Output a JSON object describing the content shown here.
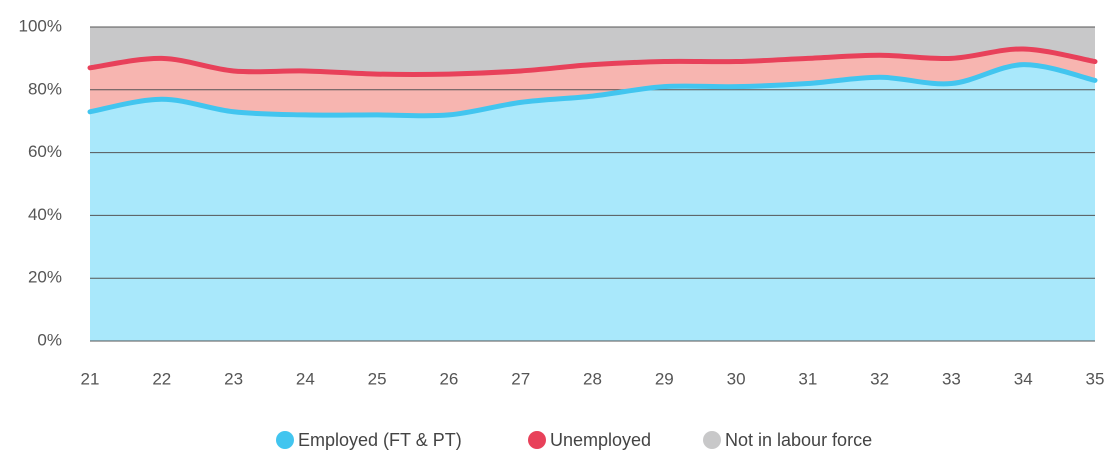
{
  "chart_data": {
    "type": "stacked_area",
    "x": [
      21,
      22,
      23,
      24,
      25,
      26,
      27,
      28,
      29,
      30,
      31,
      32,
      33,
      34,
      35
    ],
    "xlim": [
      21,
      35
    ],
    "series": [
      {
        "name": "Employed (FT & PT)",
        "color": "#42c5ef",
        "fill": "#a9e8fb",
        "values": [
          73,
          77,
          73,
          72,
          72,
          72,
          76,
          78,
          81,
          81,
          82,
          84,
          82,
          88,
          83
        ]
      },
      {
        "name": "Unemployed",
        "color": "#e8415a",
        "fill": "#f7b5b0",
        "values": [
          14,
          13,
          13,
          14,
          13,
          13,
          10,
          10,
          8,
          8,
          8,
          7,
          8,
          5,
          6
        ]
      },
      {
        "name": "Not in labour force",
        "color": "#c8c8c9",
        "fill": "#c8c8c9",
        "values": [
          13,
          10,
          14,
          14,
          15,
          15,
          14,
          12,
          11,
          11,
          10,
          9,
          10,
          7,
          11
        ]
      }
    ],
    "ylim": [
      0,
      100
    ],
    "yticks": [
      {
        "value": 0,
        "label": "0%"
      },
      {
        "value": 20,
        "label": "20%"
      },
      {
        "value": 40,
        "label": "40%"
      },
      {
        "value": 60,
        "label": "60%"
      },
      {
        "value": 80,
        "label": "80%"
      },
      {
        "value": 100,
        "label": "100%"
      }
    ],
    "grid": true
  }
}
